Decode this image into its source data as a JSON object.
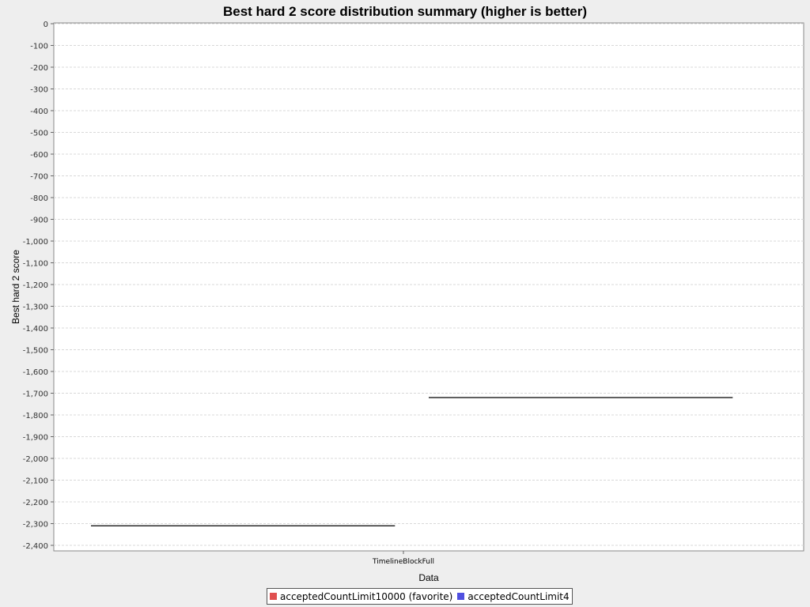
{
  "chart_data": {
    "type": "box",
    "title": "Best hard 2 score distribution summary (higher is better)",
    "xlabel": "Data",
    "ylabel": "Best hard 2 score",
    "categories": [
      "TimelineBlockFull"
    ],
    "ylim": [
      -2400,
      0
    ],
    "yticks": [
      0,
      -100,
      -200,
      -300,
      -400,
      -500,
      -600,
      -700,
      -800,
      -900,
      -1000,
      -1100,
      -1200,
      -1300,
      -1400,
      -1500,
      -1600,
      -1700,
      -1800,
      -1900,
      -2000,
      -2100,
      -2200,
      -2300,
      -2400
    ],
    "ytick_labels": [
      "0",
      "-100",
      "-200",
      "-300",
      "-400",
      "-500",
      "-600",
      "-700",
      "-800",
      "-900",
      "-1,000",
      "-1,100",
      "-1,200",
      "-1,300",
      "-1,400",
      "-1,500",
      "-1,600",
      "-1,700",
      "-1,800",
      "-1,900",
      "-2,000",
      "-2,100",
      "-2,200",
      "-2,300",
      "-2,400"
    ],
    "grid": true,
    "legend_position": "bottom",
    "series": [
      {
        "name": "acceptedCountLimit10000 (favorite)",
        "color": "#e05050",
        "values": [
          -2310
        ]
      },
      {
        "name": "acceptedCountLimit4",
        "color": "#5050e0",
        "values": [
          -1720
        ]
      }
    ]
  },
  "legend": {
    "items": [
      {
        "label": "acceptedCountLimit10000 (favorite)",
        "color": "#e05050"
      },
      {
        "label": "acceptedCountLimit4",
        "color": "#5050e0"
      }
    ]
  }
}
